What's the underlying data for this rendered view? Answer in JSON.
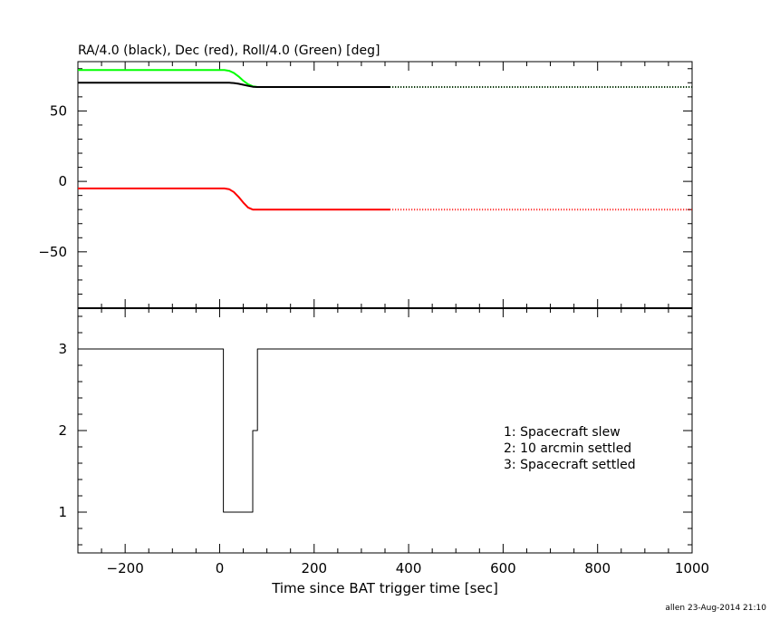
{
  "chart_data": [
    {
      "type": "line",
      "title": "RA/4.0 (black), Dec (red), Roll/4.0 (Green) [deg]",
      "xlim": [
        -300,
        1000
      ],
      "ylim": [
        -90,
        85
      ],
      "xticks": [
        -200,
        0,
        200,
        400,
        600,
        800,
        1000
      ],
      "yticks": [
        -50,
        0,
        50
      ],
      "grid": false,
      "series": [
        {
          "color": "#00ff00",
          "style_note": "solid to t=360, dotted beyond",
          "x": [
            -300,
            0,
            10,
            20,
            30,
            40,
            50,
            60,
            70,
            80,
            100,
            360,
            1000
          ],
          "y": [
            79,
            79,
            79,
            78.5,
            77,
            74.5,
            71.5,
            69,
            67.5,
            67,
            67,
            67,
            67
          ]
        },
        {
          "color": "#000000",
          "x": [
            -300,
            0,
            20,
            30,
            40,
            50,
            60,
            70,
            80,
            360,
            1000
          ],
          "y": [
            70,
            70,
            70,
            69.8,
            69.3,
            68.6,
            67.8,
            67.2,
            67,
            67,
            67
          ]
        },
        {
          "color": "#ff0000",
          "x": [
            -300,
            0,
            10,
            20,
            30,
            40,
            50,
            60,
            70,
            80,
            100,
            360,
            1000
          ],
          "y": [
            -5,
            -5,
            -5,
            -5.5,
            -7.5,
            -11,
            -15,
            -18.5,
            -20,
            -20,
            -20,
            -20,
            -20
          ]
        }
      ],
      "dotted_after_x": 360
    },
    {
      "type": "line",
      "xlabel": "Time since BAT trigger time [sec]",
      "xlim": [
        -300,
        1000
      ],
      "ylim": [
        0.5,
        3.5
      ],
      "xticks": [
        -200,
        0,
        200,
        400,
        600,
        800,
        1000
      ],
      "yticks": [
        1,
        2,
        3
      ],
      "grid": false,
      "series": [
        {
          "color": "#000000",
          "step": true,
          "x": [
            -300,
            8,
            8,
            70,
            70,
            80,
            80,
            1000
          ],
          "y": [
            3,
            3,
            1,
            1,
            2,
            2,
            3,
            3
          ]
        }
      ],
      "legend_lines": [
        "1: Spacecraft slew",
        "2: 10 arcmin settled",
        "3: Spacecraft settled"
      ],
      "legend_position": "right"
    }
  ],
  "footer": {
    "stamp": "allen 23-Aug-2014 21:10"
  }
}
